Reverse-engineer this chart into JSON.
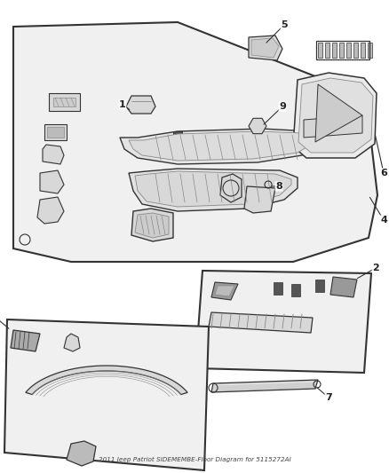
{
  "title": "2011 Jeep Patriot SIDEMEMBE-Floor Diagram for 5115272AI",
  "bg": "#ffffff",
  "lc": "#333333",
  "lc_light": "#888888",
  "fc_panel": "#f0f0f0",
  "fc_part": "#d8d8d8",
  "fc_dark": "#555555",
  "figsize": [
    4.38,
    5.33
  ],
  "dpi": 100
}
